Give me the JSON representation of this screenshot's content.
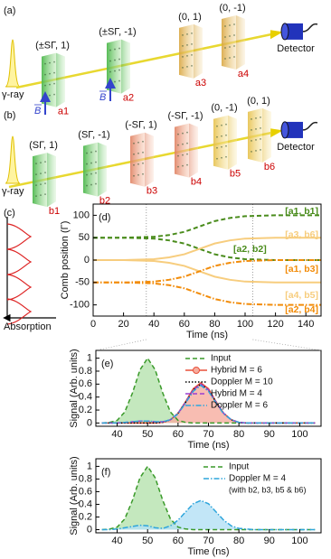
{
  "diagram": {
    "panel_a": {
      "label": "(a)",
      "source": "γ-ray",
      "field": "B",
      "detector": "Detector",
      "plates": [
        {
          "state": "(±SΓ, 1)",
          "name": "a1"
        },
        {
          "state": "(±SΓ, -1)",
          "name": "a2"
        },
        {
          "state": "(0, 1)",
          "name": "a3"
        },
        {
          "state": "(0, -1)",
          "name": "a4"
        }
      ]
    },
    "panel_b": {
      "label": "(b)",
      "source": "γ-ray",
      "detector": "Detector",
      "plates": [
        {
          "state": "(SΓ, 1)",
          "name": "b1"
        },
        {
          "state": "(SΓ, -1)",
          "name": "b2"
        },
        {
          "state": "(-SΓ, 1)",
          "name": "b3"
        },
        {
          "state": "(-SΓ, -1)",
          "name": "b4"
        },
        {
          "state": "(0, -1)",
          "name": "b5"
        },
        {
          "state": "(0, 1)",
          "name": "b6"
        }
      ]
    },
    "panel_c": {
      "label": "(c)",
      "axis": "Absorption"
    }
  },
  "chart_data": [
    {
      "type": "line",
      "label": "(d)",
      "xlabel": "Time (ns)",
      "ylabel": "Comb position (Γ)",
      "x": [
        0,
        10,
        20,
        30,
        40,
        50,
        60,
        70,
        80,
        90,
        100,
        110,
        120,
        130,
        140,
        150
      ],
      "xlim": [
        0,
        150
      ],
      "xticks": [
        0,
        20,
        40,
        60,
        80,
        100,
        120,
        140
      ],
      "ylim": [
        -125,
        125
      ],
      "yticks": [
        -100,
        -50,
        0,
        50,
        100
      ],
      "vlines": [
        35,
        105
      ],
      "series": [
        {
          "name": "[a1, b1]",
          "color": "#4a8c1c",
          "style": "dashed",
          "values": [
            50,
            50,
            50,
            51,
            52,
            56,
            63,
            75,
            87,
            94,
            98,
            99,
            100,
            100,
            100,
            100
          ]
        },
        {
          "name": "[a2, b2]",
          "color": "#4a8c1c",
          "style": "dashed",
          "values": [
            50,
            50,
            50,
            49,
            48,
            44,
            37,
            25,
            13,
            6,
            2,
            1,
            0,
            0,
            0,
            0
          ]
        },
        {
          "name": "[a3, b6]",
          "color": "#f7cd7e",
          "style": "solid",
          "values": [
            0,
            0,
            0,
            1,
            2,
            6,
            13,
            25,
            37,
            44,
            48,
            49,
            50,
            50,
            50,
            50
          ]
        },
        {
          "name": "[a4, b5]",
          "color": "#f7cd7e",
          "style": "solid",
          "values": [
            0,
            0,
            0,
            -1,
            -2,
            -6,
            -13,
            -25,
            -37,
            -44,
            -48,
            -49,
            -50,
            -50,
            -50,
            -50
          ]
        },
        {
          "name": "[a1, b3]",
          "color": "#f28c0a",
          "style": "dashdot",
          "values": [
            -50,
            -50,
            -50,
            -49,
            -48,
            -44,
            -37,
            -25,
            -13,
            -6,
            -2,
            -1,
            0,
            0,
            0,
            0
          ]
        },
        {
          "name": "[a2, b4]",
          "color": "#f28c0a",
          "style": "dashdot",
          "values": [
            -50,
            -50,
            -50,
            -51,
            -52,
            -56,
            -63,
            -75,
            -87,
            -94,
            -98,
            -99,
            -100,
            -100,
            -100,
            -100
          ]
        }
      ]
    },
    {
      "type": "line",
      "label": "(e)",
      "xlabel": "Time (ns)",
      "ylabel": "Signal (Arb. units)",
      "legend": "upper right",
      "x": [
        35,
        37.5,
        40,
        42.5,
        45,
        47.5,
        50,
        52.5,
        55,
        57.5,
        60,
        62.5,
        65,
        67.5,
        70,
        72.5,
        75,
        77.5,
        80,
        82.5,
        85,
        87.5,
        90,
        92.5,
        95,
        97.5,
        100,
        102.5,
        105
      ],
      "xlim": [
        33,
        107
      ],
      "xticks": [
        40,
        50,
        60,
        70,
        80,
        90,
        100
      ],
      "ylim": [
        -0.05,
        1.12
      ],
      "yticks": [
        0,
        0.2,
        0.4,
        0.6,
        0.8,
        1
      ],
      "series": [
        {
          "name": "Input",
          "color": "#3a9a2a",
          "style": "dashed",
          "fill": "#b5e2ae",
          "values": [
            0,
            0.01,
            0.04,
            0.17,
            0.46,
            0.82,
            1,
            0.82,
            0.46,
            0.17,
            0.04,
            0.01,
            0,
            0,
            0,
            0,
            0,
            0,
            0,
            0,
            0,
            0,
            0,
            0,
            0,
            0,
            0,
            0,
            0
          ]
        },
        {
          "name": "Hybrid M = 6",
          "color": "#e8503a",
          "style": "solid",
          "marker": "o",
          "fill": "#f6ad9f",
          "values": [
            0,
            0,
            0,
            0,
            0,
            0,
            0,
            0,
            0.01,
            0.05,
            0.15,
            0.33,
            0.53,
            0.62,
            0.53,
            0.33,
            0.15,
            0.05,
            0.01,
            0,
            0,
            0,
            0,
            0,
            0,
            0,
            0,
            0,
            0
          ]
        },
        {
          "name": "Doppler M = 10",
          "color": "#000000",
          "style": "dotted",
          "values": [
            0,
            0,
            0,
            0,
            0,
            0,
            0,
            0,
            0.01,
            0.05,
            0.15,
            0.32,
            0.51,
            0.6,
            0.51,
            0.32,
            0.15,
            0.05,
            0.01,
            0,
            0,
            0,
            0,
            0,
            0,
            0,
            0,
            0,
            0
          ]
        },
        {
          "name": "Hybrid M = 4",
          "color": "#9b3fd0",
          "style": "dashed",
          "values": [
            0,
            0,
            0,
            0.01,
            0.02,
            0.03,
            0.03,
            0.02,
            0.02,
            0.05,
            0.15,
            0.32,
            0.51,
            0.6,
            0.51,
            0.32,
            0.15,
            0.05,
            0.01,
            0,
            0,
            0,
            0,
            0,
            0,
            0,
            0,
            0,
            0
          ]
        },
        {
          "name": "Doppler M = 6",
          "color": "#2fa6dc",
          "style": "dashdot",
          "values": [
            0,
            0,
            0,
            0.01,
            0.02,
            0.03,
            0.03,
            0.02,
            0.02,
            0.05,
            0.14,
            0.31,
            0.49,
            0.58,
            0.49,
            0.31,
            0.14,
            0.05,
            0.01,
            0,
            0,
            0,
            0,
            0,
            0,
            0,
            0,
            0,
            0
          ]
        }
      ]
    },
    {
      "type": "line",
      "label": "(f)",
      "xlabel": "Time (ns)",
      "ylabel": "Signal (Arb. units)",
      "legend": "upper right",
      "annotation": "(with b2, b3, b5 & b6)",
      "x": [
        35,
        37.5,
        40,
        42.5,
        45,
        47.5,
        50,
        52.5,
        55,
        57.5,
        60,
        62.5,
        65,
        67.5,
        70,
        72.5,
        75,
        77.5,
        80,
        82.5,
        85,
        87.5,
        90,
        92.5,
        95,
        97.5,
        100,
        102.5,
        105
      ],
      "xlim": [
        33,
        107
      ],
      "xticks": [
        40,
        50,
        60,
        70,
        80,
        90,
        100
      ],
      "ylim": [
        -0.05,
        1.12
      ],
      "yticks": [
        0,
        0.2,
        0.4,
        0.6,
        0.8,
        1
      ],
      "series": [
        {
          "name": "Input",
          "color": "#3a9a2a",
          "style": "dashed",
          "fill": "#b5e2ae",
          "values": [
            0,
            0.01,
            0.04,
            0.17,
            0.46,
            0.82,
            1,
            0.82,
            0.46,
            0.17,
            0.04,
            0.01,
            0,
            0,
            0,
            0,
            0,
            0,
            0,
            0,
            0,
            0,
            0,
            0,
            0,
            0,
            0,
            0,
            0
          ]
        },
        {
          "name": "Doppler M = 4",
          "color": "#2fa6dc",
          "style": "dashdot",
          "fill": "#b3e0f5",
          "values": [
            0,
            0,
            0.01,
            0.03,
            0.05,
            0.07,
            0.06,
            0.03,
            0.02,
            0.06,
            0.15,
            0.28,
            0.41,
            0.46,
            0.41,
            0.28,
            0.15,
            0.06,
            0.02,
            0.01,
            0,
            0,
            0,
            0,
            0,
            0,
            0,
            0,
            0
          ]
        }
      ]
    }
  ]
}
